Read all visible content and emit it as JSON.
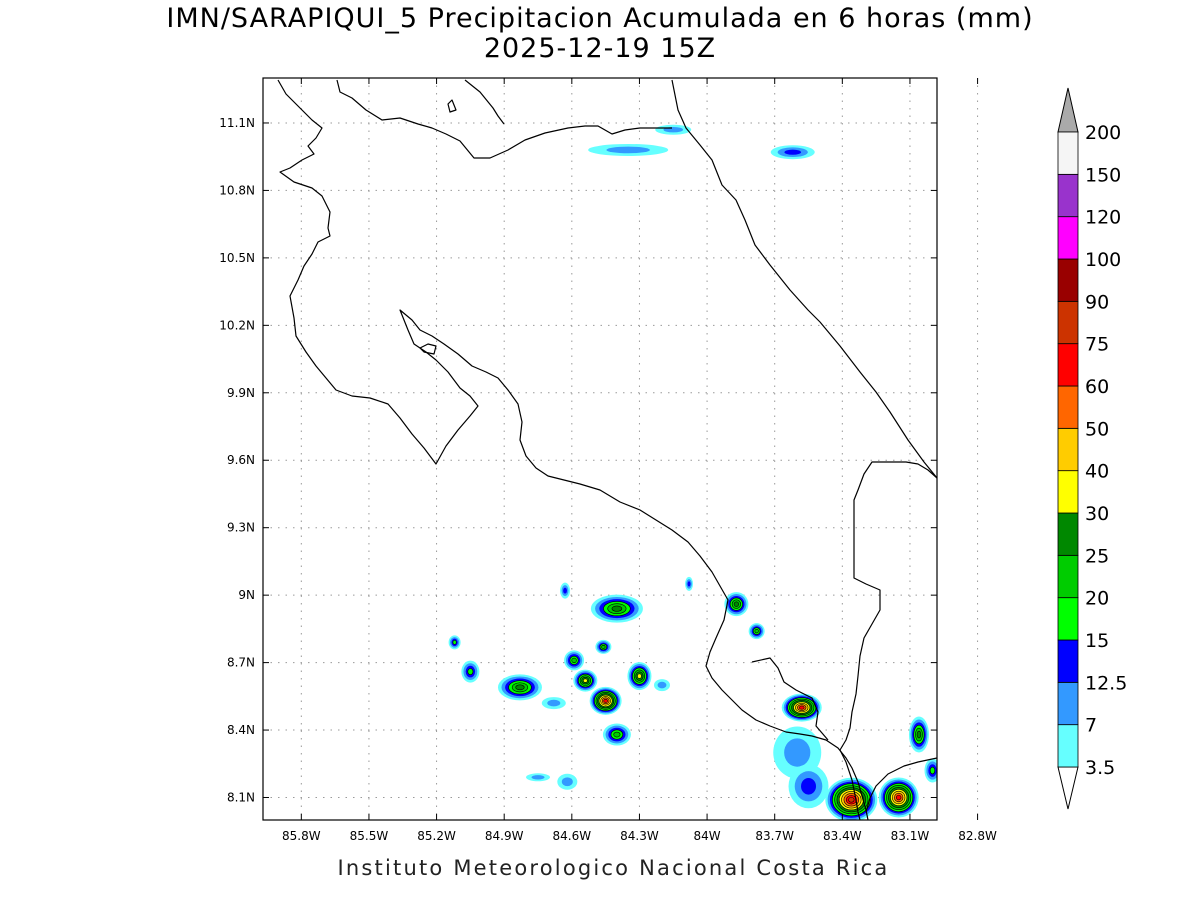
{
  "title": "IMN/SARAPIQUI_5 Precipitacion Acumulada en 6 horas (mm)",
  "subtitle": "2025-12-19 15Z",
  "footer": "Instituto Meteorologico Nacional Costa Rica",
  "axes": {
    "lon_labels": [
      "85.8W",
      "85.5W",
      "85.2W",
      "84.9W",
      "84.6W",
      "84.3W",
      "84W",
      "83.7W",
      "83.4W",
      "83.1W",
      "82.8W"
    ],
    "lat_labels": [
      "8.1N",
      "8.4N",
      "8.7N",
      "9N",
      "9.3N",
      "9.6N",
      "9.9N",
      "10.2N",
      "10.5N",
      "10.8N",
      "11.1N"
    ],
    "lon_range": [
      -85.97,
      -82.98
    ],
    "lat_range": [
      8.0,
      11.3
    ],
    "grid": "dotted"
  },
  "colorbar": {
    "levels": [
      "3.5",
      "7",
      "12.5",
      "15",
      "20",
      "25",
      "30",
      "40",
      "50",
      "60",
      "75",
      "90",
      "100",
      "120",
      "150",
      "200"
    ],
    "colors": [
      "#66ffff",
      "#3399ff",
      "#0000ff",
      "#00ff00",
      "#00cc00",
      "#008800",
      "#ffff00",
      "#ffcc00",
      "#ff6600",
      "#ff0000",
      "#cc3300",
      "#990000",
      "#ff00ff",
      "#9933cc",
      "#f5f5f5",
      "#aaaaaa"
    ]
  },
  "precip_cells": [
    {
      "lon": -84.45,
      "lat": 8.53,
      "rx": 16,
      "ry": 14,
      "peak": 9
    },
    {
      "lon": -83.58,
      "lat": 8.5,
      "rx": 20,
      "ry": 14,
      "peak": 9
    },
    {
      "lon": -83.36,
      "lat": 8.09,
      "rx": 26,
      "ry": 22,
      "peak": 10
    },
    {
      "lon": -83.15,
      "lat": 8.1,
      "rx": 20,
      "ry": 20,
      "peak": 9
    },
    {
      "lon": -84.4,
      "lat": 8.94,
      "rx": 26,
      "ry": 14,
      "peak": 5
    },
    {
      "lon": -84.83,
      "lat": 8.59,
      "rx": 22,
      "ry": 13,
      "peak": 5
    },
    {
      "lon": -84.3,
      "lat": 8.64,
      "rx": 12,
      "ry": 14,
      "peak": 6
    },
    {
      "lon": -84.54,
      "lat": 8.62,
      "rx": 12,
      "ry": 11,
      "peak": 6
    },
    {
      "lon": -84.59,
      "lat": 8.71,
      "rx": 10,
      "ry": 10,
      "peak": 4
    },
    {
      "lon": -84.46,
      "lat": 8.77,
      "rx": 8,
      "ry": 7,
      "peak": 4
    },
    {
      "lon": -83.87,
      "lat": 8.96,
      "rx": 12,
      "ry": 12,
      "peak": 5
    },
    {
      "lon": -83.78,
      "lat": 8.84,
      "rx": 8,
      "ry": 8,
      "peak": 4
    },
    {
      "lon": -83.06,
      "lat": 8.38,
      "rx": 10,
      "ry": 18,
      "peak": 5
    },
    {
      "lon": -85.05,
      "lat": 8.66,
      "rx": 9,
      "ry": 11,
      "peak": 3
    },
    {
      "lon": -85.12,
      "lat": 8.79,
      "rx": 6,
      "ry": 7,
      "peak": 3
    },
    {
      "lon": -84.4,
      "lat": 8.38,
      "rx": 14,
      "ry": 11,
      "peak": 4
    },
    {
      "lon": -83.0,
      "lat": 8.22,
      "rx": 8,
      "ry": 12,
      "peak": 3
    },
    {
      "lon": -83.6,
      "lat": 8.3,
      "rx": 24,
      "ry": 26,
      "peak": 1
    },
    {
      "lon": -83.55,
      "lat": 8.15,
      "rx": 20,
      "ry": 22,
      "peak": 2
    },
    {
      "lon": -84.63,
      "lat": 9.02,
      "rx": 5,
      "ry": 8,
      "peak": 2
    },
    {
      "lon": -84.08,
      "lat": 9.05,
      "rx": 4,
      "ry": 7,
      "peak": 2
    },
    {
      "lon": -84.2,
      "lat": 8.6,
      "rx": 8,
      "ry": 6,
      "peak": 1
    },
    {
      "lon": -84.62,
      "lat": 8.17,
      "rx": 10,
      "ry": 8,
      "peak": 1
    },
    {
      "lon": -84.75,
      "lat": 8.19,
      "rx": 12,
      "ry": 4,
      "peak": 1
    },
    {
      "lon": -84.68,
      "lat": 8.52,
      "rx": 12,
      "ry": 6,
      "peak": 1
    },
    {
      "lon": -84.35,
      "lat": 10.98,
      "rx": 40,
      "ry": 6,
      "peak": 1
    },
    {
      "lon": -84.15,
      "lat": 11.07,
      "rx": 18,
      "ry": 5,
      "peak": 1
    },
    {
      "lon": -83.62,
      "lat": 10.97,
      "rx": 22,
      "ry": 7,
      "peak": 2
    }
  ]
}
